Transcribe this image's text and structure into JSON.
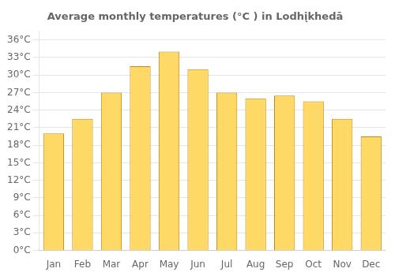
{
  "chart_data": {
    "type": "bar",
    "title": "Average monthly temperatures (°C ) in Lodhįkhedā",
    "categories": [
      "Jan",
      "Feb",
      "Mar",
      "Apr",
      "May",
      "Jun",
      "Jul",
      "Aug",
      "Sep",
      "Oct",
      "Nov",
      "Dec"
    ],
    "values": [
      20.0,
      22.5,
      27.0,
      31.5,
      34.0,
      31.0,
      27.0,
      26.0,
      26.5,
      25.5,
      22.5,
      19.5
    ],
    "color": "#FFD966",
    "ylim": [
      0,
      37.5
    ],
    "yticks": [
      {
        "value": 0,
        "label": "0°C"
      },
      {
        "value": 3,
        "label": "3°C"
      },
      {
        "value": 6,
        "label": "6°C"
      },
      {
        "value": 9,
        "label": "9°C"
      },
      {
        "value": 12,
        "label": "12°C"
      },
      {
        "value": 15,
        "label": "15°C"
      },
      {
        "value": 18,
        "label": "18°C"
      },
      {
        "value": 21,
        "label": "21°C"
      },
      {
        "value": 24,
        "label": "24°C"
      },
      {
        "value": 27,
        "label": "27°C"
      },
      {
        "value": 30,
        "label": "30°C"
      },
      {
        "value": 33,
        "label": "33°C"
      },
      {
        "value": 36,
        "label": "36°C"
      }
    ],
    "grid": true
  }
}
